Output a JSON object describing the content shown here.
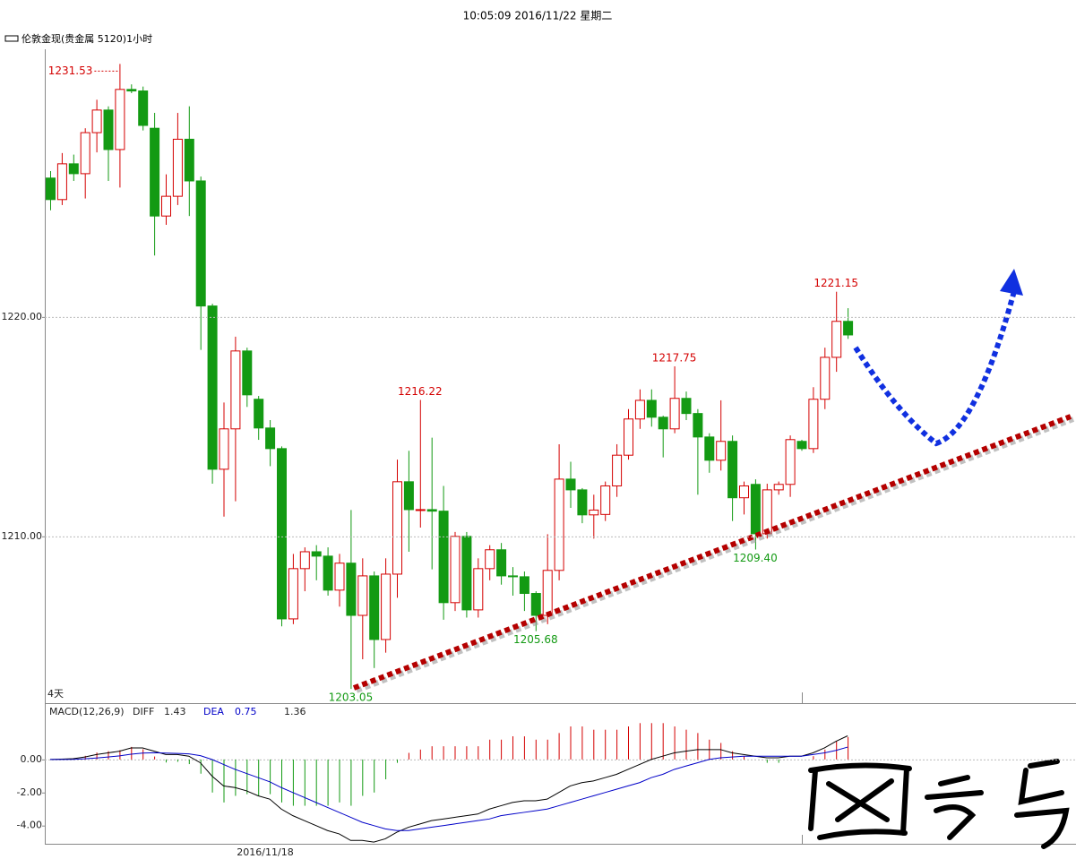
{
  "chart_data": {
    "type": "candlestick",
    "title": "10:05:09 2016/11/22 星期二",
    "symbol": "伦敦金现(贵金属 5120)1小时",
    "period_label": "4天",
    "x_label": "2016/11/18",
    "up_color": "#d40000",
    "down_color": "#139a13",
    "ylim": [
      1202.4,
      1232.2
    ],
    "yticks": [
      {
        "value": 1210,
        "label": "1210.00"
      },
      {
        "value": 1220,
        "label": "1220.00"
      }
    ],
    "grid": true,
    "open": [
      1226.33,
      1225.35,
      1226.98,
      1226.53,
      1228.4,
      1229.43,
      1227.63,
      1230.37,
      1230.3,
      1228.6,
      1224.6,
      1225.5,
      1228.1,
      1226.2,
      1220.5,
      1213.06,
      1214.9,
      1218.45,
      1216.25,
      1214.94,
      1214.0,
      1206.24,
      1208.53,
      1209.3,
      1209.1,
      1207.55,
      1208.78,
      1206.4,
      1208.2,
      1205.3,
      1208.28,
      1212.49,
      1211.2,
      1211.22,
      1211.15,
      1206.98,
      1210.0,
      1206.65,
      1208.53,
      1209.39,
      1208.2,
      1208.16,
      1207.4,
      1206.4,
      1208.45,
      1212.61,
      1212.12,
      1210.98,
      1211.0,
      1212.3,
      1213.7,
      1215.35,
      1216.2,
      1215.43,
      1214.9,
      1216.29,
      1215.6,
      1214.53,
      1213.47,
      1214.33,
      1211.76,
      1212.37,
      1210.12,
      1212.12,
      1212.37,
      1214.33,
      1214.0,
      1216.25,
      1218.16,
      1219.8
    ],
    "high": [
      1226.65,
      1227.47,
      1227.4,
      1228.6,
      1229.9,
      1229.6,
      1231.53,
      1230.6,
      1230.5,
      1229.3,
      1226.5,
      1229.3,
      1229.6,
      1226.4,
      1220.6,
      1216.1,
      1219.1,
      1218.6,
      1216.4,
      1215.3,
      1214.1,
      1209.2,
      1209.5,
      1209.6,
      1209.5,
      1209.2,
      1211.2,
      1209.0,
      1208.4,
      1209.0,
      1213.5,
      1213.9,
      1216.22,
      1214.5,
      1212.3,
      1210.2,
      1210.2,
      1209.0,
      1209.6,
      1209.7,
      1208.6,
      1208.4,
      1207.5,
      1210.1,
      1214.2,
      1213.4,
      1212.2,
      1211.9,
      1212.5,
      1214.2,
      1215.8,
      1216.7,
      1216.7,
      1215.5,
      1217.75,
      1216.6,
      1215.8,
      1214.7,
      1216.2,
      1214.6,
      1212.5,
      1212.6,
      1212.4,
      1212.5,
      1214.6,
      1214.4,
      1216.8,
      1218.6,
      1221.15,
      1220.4
    ],
    "low": [
      1224.86,
      1225.1,
      1226.2,
      1225.4,
      1227.5,
      1226.2,
      1225.9,
      1230.2,
      1228.5,
      1222.8,
      1224.2,
      1225.1,
      1224.6,
      1218.5,
      1212.4,
      1210.9,
      1211.6,
      1215.9,
      1214.4,
      1213.2,
      1205.9,
      1206.0,
      1207.5,
      1208.0,
      1207.3,
      1206.8,
      1203.05,
      1204.4,
      1204.0,
      1204.7,
      1207.2,
      1209.3,
      1210.4,
      1208.5,
      1206.2,
      1206.6,
      1206.3,
      1206.3,
      1208.0,
      1207.8,
      1207.3,
      1206.6,
      1205.68,
      1206.0,
      1208.0,
      1211.3,
      1210.6,
      1209.9,
      1210.7,
      1211.8,
      1213.5,
      1214.9,
      1215.0,
      1213.6,
      1214.7,
      1215.3,
      1211.9,
      1212.9,
      1213.0,
      1210.7,
      1211.0,
      1209.4,
      1209.9,
      1211.9,
      1211.8,
      1213.9,
      1213.8,
      1215.8,
      1217.5,
      1219.0
    ],
    "close": [
      1225.35,
      1226.98,
      1226.53,
      1228.4,
      1229.43,
      1227.63,
      1230.37,
      1230.3,
      1228.73,
      1224.6,
      1225.5,
      1228.1,
      1226.2,
      1220.5,
      1213.06,
      1214.9,
      1218.45,
      1216.45,
      1214.94,
      1214.0,
      1206.24,
      1208.53,
      1209.3,
      1209.1,
      1207.55,
      1208.78,
      1206.4,
      1208.2,
      1205.3,
      1208.28,
      1212.49,
      1211.22,
      1211.22,
      1211.15,
      1206.98,
      1210.0,
      1206.65,
      1208.53,
      1209.39,
      1208.2,
      1208.16,
      1207.4,
      1206.4,
      1208.45,
      1212.61,
      1212.12,
      1210.98,
      1211.2,
      1212.3,
      1213.7,
      1215.35,
      1216.2,
      1215.43,
      1214.9,
      1216.29,
      1215.6,
      1214.53,
      1213.47,
      1214.33,
      1211.76,
      1212.3,
      1210.12,
      1212.12,
      1212.37,
      1214.41,
      1214.0,
      1216.25,
      1218.16,
      1219.8,
      1219.18
    ],
    "high_labels": [
      {
        "value": 1231.53,
        "label": "1231.53"
      },
      {
        "value": 1216.22,
        "label": "1216.22"
      },
      {
        "value": 1217.75,
        "label": "1217.75"
      },
      {
        "value": 1221.15,
        "label": "1221.15"
      }
    ],
    "low_labels": [
      {
        "value": 1203.05,
        "label": "1203.05"
      },
      {
        "value": 1205.68,
        "label": "1205.68"
      },
      {
        "value": 1209.4,
        "label": "1209.40"
      }
    ],
    "macd": {
      "label": "MACD(12,26,9)",
      "ylim": [
        -5.1,
        3.3
      ],
      "yticks": [
        {
          "value": 0,
          "label": "0.00"
        },
        {
          "value": -2,
          "label": "-2.00"
        },
        {
          "value": -4,
          "label": "-4.00"
        }
      ],
      "diff": {
        "name": "DIFF",
        "value": 1.43,
        "color": "#000000",
        "values": [
          0.0,
          0.02,
          0.05,
          0.15,
          0.3,
          0.4,
          0.5,
          0.7,
          0.7,
          0.5,
          0.3,
          0.3,
          0.2,
          -0.2,
          -1.0,
          -1.6,
          -1.7,
          -1.9,
          -2.2,
          -2.4,
          -3.0,
          -3.4,
          -3.7,
          -4.0,
          -4.3,
          -4.5,
          -4.9,
          -4.9,
          -5.0,
          -4.8,
          -4.4,
          -4.1,
          -3.9,
          -3.7,
          -3.6,
          -3.5,
          -3.4,
          -3.3,
          -3.0,
          -2.8,
          -2.6,
          -2.5,
          -2.5,
          -2.4,
          -2.0,
          -1.6,
          -1.4,
          -1.3,
          -1.1,
          -0.9,
          -0.6,
          -0.3,
          0.0,
          0.2,
          0.4,
          0.5,
          0.6,
          0.6,
          0.6,
          0.4,
          0.3,
          0.2,
          0.1,
          0.1,
          0.2,
          0.2,
          0.4,
          0.7,
          1.1,
          1.43
        ]
      },
      "dea": {
        "name": "DEA",
        "value": 0.75,
        "color": "#0000c8",
        "values": [
          0.0,
          0.0,
          0.01,
          0.04,
          0.09,
          0.15,
          0.22,
          0.32,
          0.39,
          0.41,
          0.39,
          0.37,
          0.34,
          0.23,
          0.0,
          -0.3,
          -0.6,
          -0.85,
          -1.1,
          -1.35,
          -1.7,
          -2.0,
          -2.3,
          -2.6,
          -2.9,
          -3.2,
          -3.5,
          -3.8,
          -4.0,
          -4.2,
          -4.3,
          -4.3,
          -4.2,
          -4.1,
          -4.0,
          -3.9,
          -3.8,
          -3.7,
          -3.6,
          -3.4,
          -3.3,
          -3.2,
          -3.1,
          -3.0,
          -2.8,
          -2.6,
          -2.4,
          -2.2,
          -2.0,
          -1.8,
          -1.6,
          -1.4,
          -1.1,
          -0.9,
          -0.6,
          -0.4,
          -0.2,
          0.0,
          0.1,
          0.15,
          0.2,
          0.2,
          0.2,
          0.2,
          0.2,
          0.2,
          0.3,
          0.4,
          0.55,
          0.75
        ]
      },
      "histogram": {
        "value": 1.36,
        "values": [
          0,
          0.04,
          0.08,
          0.22,
          0.42,
          0.5,
          0.56,
          0.76,
          0.62,
          0.18,
          -0.18,
          -0.14,
          -0.28,
          -0.86,
          -2.0,
          -2.6,
          -2.2,
          -2.1,
          -2.2,
          -2.1,
          -2.6,
          -2.8,
          -2.8,
          -2.8,
          -2.8,
          -2.6,
          -2.8,
          -2.2,
          -2.0,
          -1.2,
          -0.2,
          0.4,
          0.6,
          0.8,
          0.8,
          0.8,
          0.8,
          0.8,
          1.2,
          1.2,
          1.4,
          1.4,
          1.2,
          1.2,
          1.6,
          2.0,
          2.0,
          1.8,
          1.8,
          1.8,
          2.0,
          2.2,
          2.2,
          2.2,
          2.0,
          1.8,
          1.6,
          1.2,
          1.0,
          0.5,
          0.2,
          0,
          -0.2,
          -0.2,
          0,
          0,
          0.2,
          0.6,
          1.1,
          1.36
        ]
      }
    }
  }
}
